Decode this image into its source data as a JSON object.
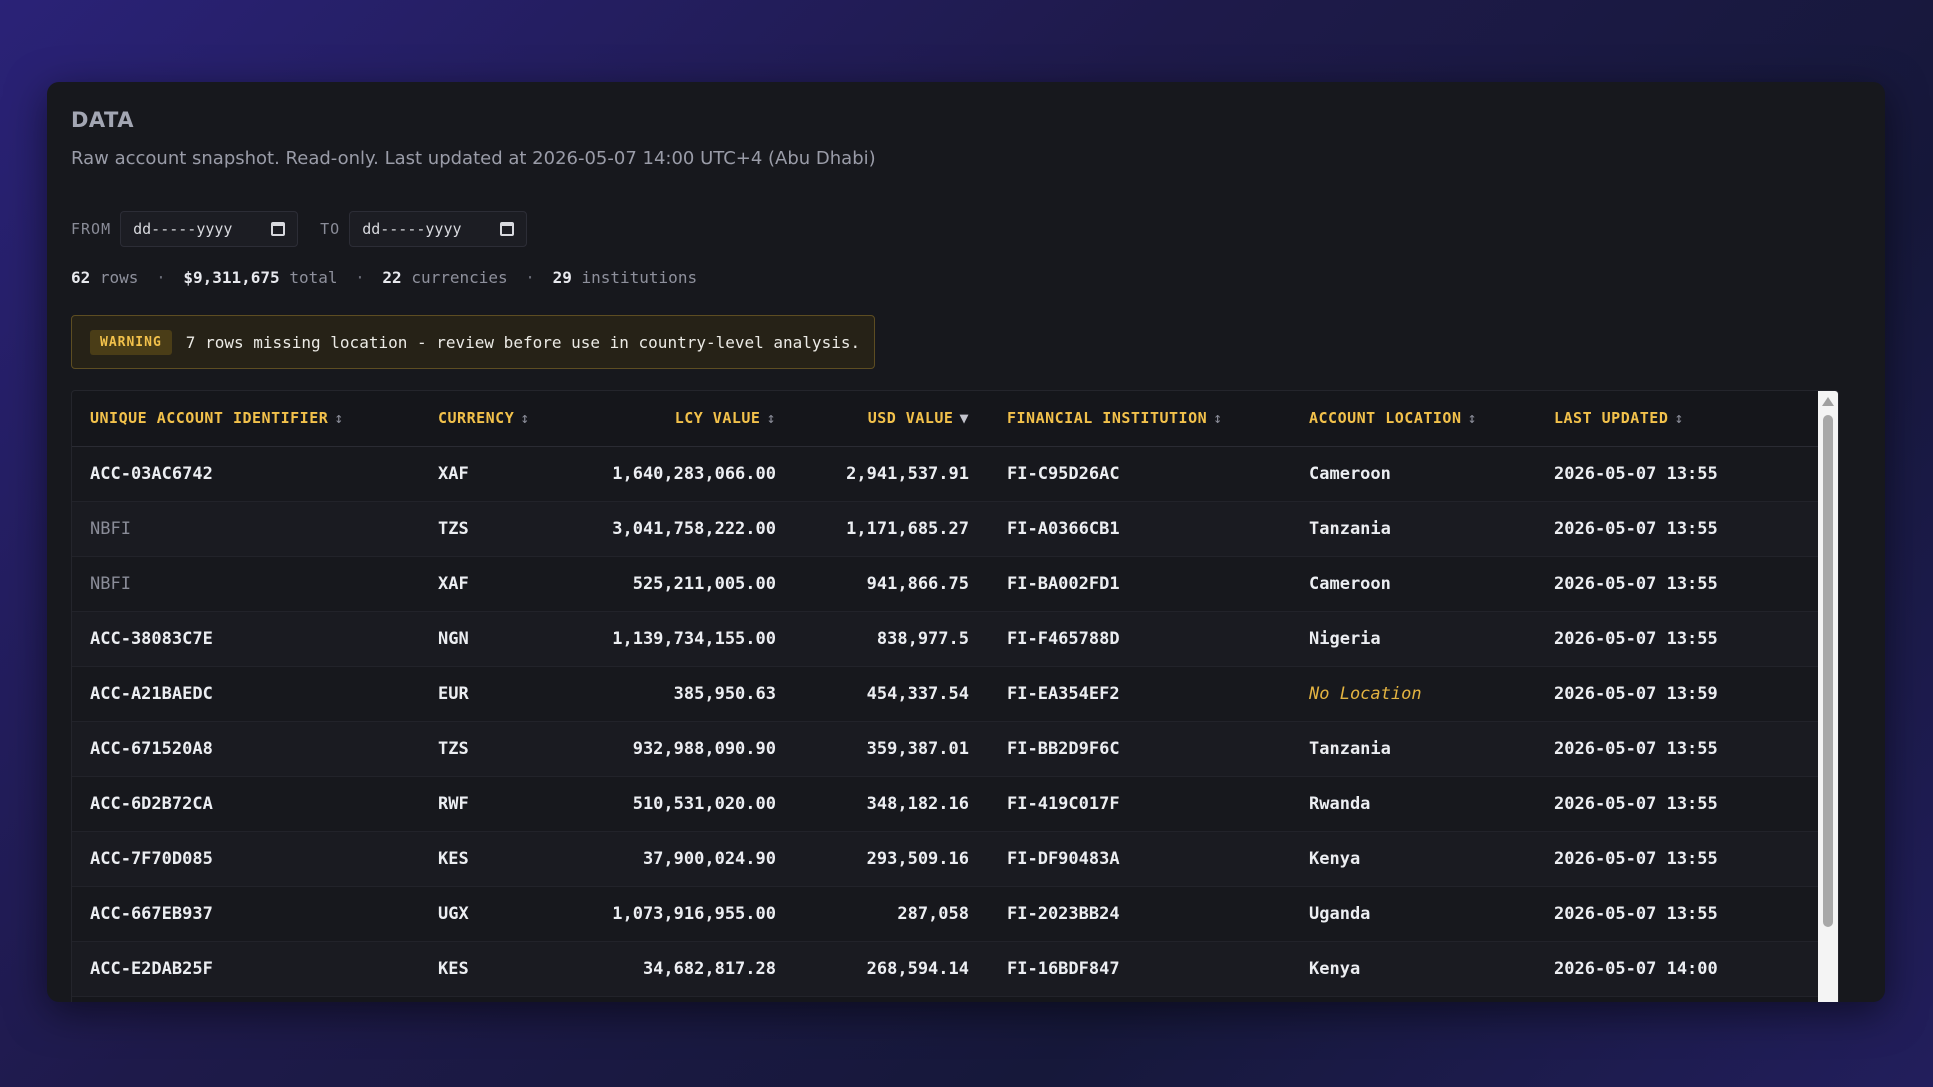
{
  "header": {
    "title": "DATA",
    "subtitle": "Raw account snapshot. Read-only. Last updated at 2026-05-07 14:00 UTC+4 (Abu Dhabi)"
  },
  "filters": {
    "from_label": "FROM",
    "from_placeholder": "dd-----yyyy",
    "to_label": "TO",
    "to_placeholder": "dd-----yyyy"
  },
  "stats": {
    "rows": "62",
    "rows_label": "rows",
    "total": "$9,311,675",
    "total_label": "total",
    "currencies": "22",
    "currencies_label": "currencies",
    "institutions": "29",
    "institutions_label": "institutions"
  },
  "warning": {
    "badge": "WARNING",
    "message": "7 rows missing location - review before use in country-level analysis."
  },
  "table": {
    "columns": [
      {
        "label": "UNIQUE ACCOUNT IDENTIFIER",
        "sort": "↕"
      },
      {
        "label": "CURRENCY",
        "sort": "↕"
      },
      {
        "label": "LCY VALUE",
        "sort": "↕"
      },
      {
        "label": "USD VALUE",
        "sort": "▼"
      },
      {
        "label": "FINANCIAL INSTITUTION",
        "sort": "↕"
      },
      {
        "label": "ACCOUNT LOCATION",
        "sort": "↕"
      },
      {
        "label": "LAST UPDATED",
        "sort": "↕"
      }
    ],
    "rows": [
      {
        "id": "ACC-03AC6742",
        "currency": "XAF",
        "lcy": "1,640,283,066.00",
        "usd": "2,941,537.91",
        "fi": "FI-C95D26AC",
        "location": "Cameroon",
        "updated": "2026-05-07 13:55"
      },
      {
        "id": "NBFI",
        "currency": "TZS",
        "lcy": "3,041,758,222.00",
        "usd": "1,171,685.27",
        "fi": "FI-A0366CB1",
        "location": "Tanzania",
        "updated": "2026-05-07 13:55"
      },
      {
        "id": "NBFI",
        "currency": "XAF",
        "lcy": "525,211,005.00",
        "usd": "941,866.75",
        "fi": "FI-BA002FD1",
        "location": "Cameroon",
        "updated": "2026-05-07 13:55"
      },
      {
        "id": "ACC-38083C7E",
        "currency": "NGN",
        "lcy": "1,139,734,155.00",
        "usd": "838,977.5",
        "fi": "FI-F465788D",
        "location": "Nigeria",
        "updated": "2026-05-07 13:55"
      },
      {
        "id": "ACC-A21BAEDC",
        "currency": "EUR",
        "lcy": "385,950.63",
        "usd": "454,337.54",
        "fi": "FI-EA354EF2",
        "location": "No Location",
        "updated": "2026-05-07 13:59"
      },
      {
        "id": "ACC-671520A8",
        "currency": "TZS",
        "lcy": "932,988,090.90",
        "usd": "359,387.01",
        "fi": "FI-BB2D9F6C",
        "location": "Tanzania",
        "updated": "2026-05-07 13:55"
      },
      {
        "id": "ACC-6D2B72CA",
        "currency": "RWF",
        "lcy": "510,531,020.00",
        "usd": "348,182.16",
        "fi": "FI-419C017F",
        "location": "Rwanda",
        "updated": "2026-05-07 13:55"
      },
      {
        "id": "ACC-7F70D085",
        "currency": "KES",
        "lcy": "37,900,024.90",
        "usd": "293,509.16",
        "fi": "FI-DF90483A",
        "location": "Kenya",
        "updated": "2026-05-07 13:55"
      },
      {
        "id": "ACC-667EB937",
        "currency": "UGX",
        "lcy": "1,073,916,955.00",
        "usd": "287,058",
        "fi": "FI-2023BB24",
        "location": "Uganda",
        "updated": "2026-05-07 13:55"
      },
      {
        "id": "ACC-E2DAB25F",
        "currency": "KES",
        "lcy": "34,682,817.28",
        "usd": "268,594.14",
        "fi": "FI-16BDF847",
        "location": "Kenya",
        "updated": "2026-05-07 14:00"
      }
    ]
  }
}
